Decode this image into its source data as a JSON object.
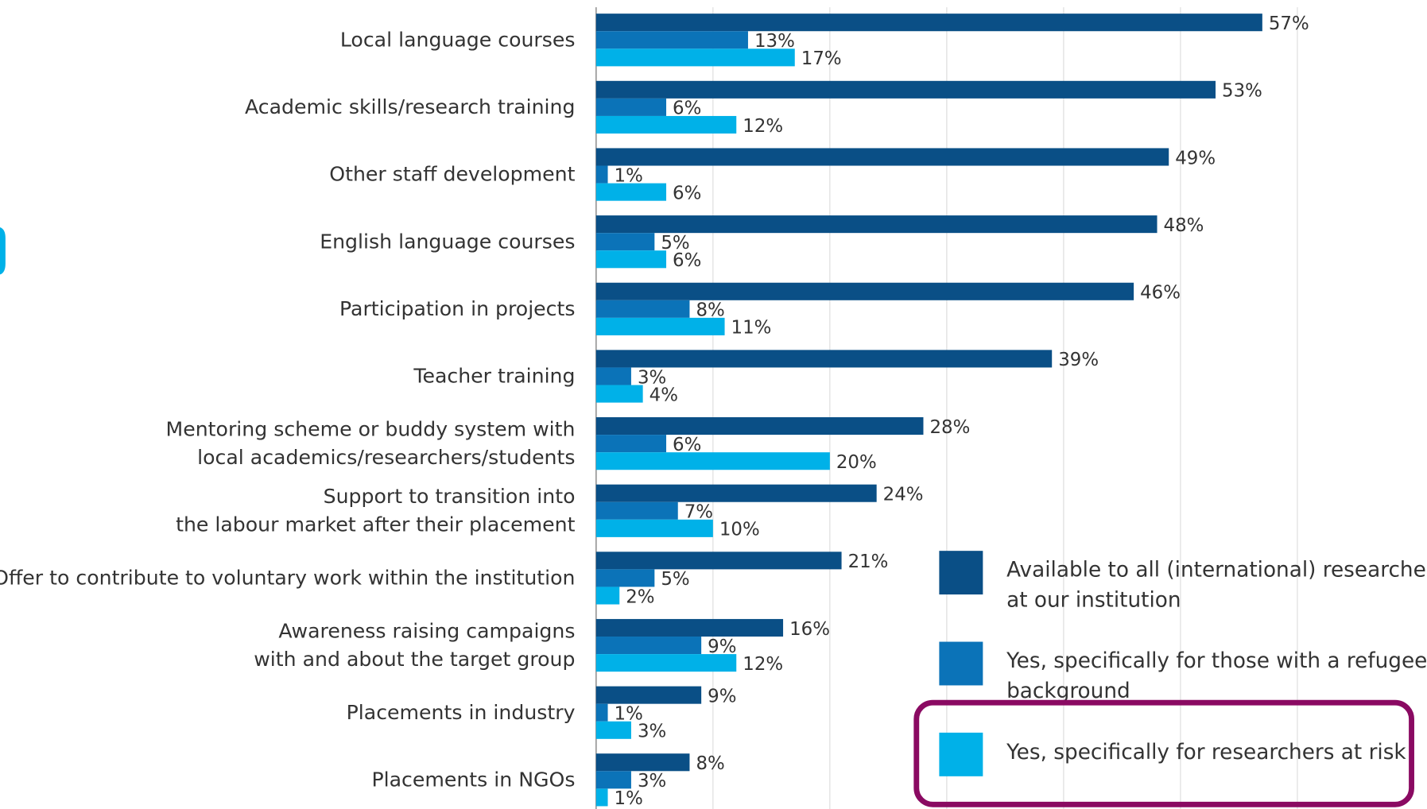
{
  "chart_data": {
    "type": "hbar",
    "categories": [
      "Local language courses",
      "Academic skills/research training",
      "Other staff development",
      "English language courses",
      "Participation in projects",
      "Teacher training",
      "Mentoring scheme or buddy system with\nlocal academics/researchers/students",
      "Support to transition into\nthe labour market after their placement",
      "Offer to contribute to voluntary work within the institution",
      "Awareness raising campaigns\nwith and about the target group",
      "Placements in industry",
      "Placements in NGOs"
    ],
    "series": [
      {
        "name": "Available to all (international) researchers at our institution",
        "color": "#0a4f86",
        "values": [
          57,
          53,
          49,
          48,
          46,
          39,
          28,
          24,
          21,
          16,
          9,
          8
        ],
        "value_labels": [
          "57%",
          "53%",
          "49%",
          "48%",
          "46%",
          "39%",
          "28%",
          "24%",
          "21%",
          "16%",
          "9%",
          "8%"
        ]
      },
      {
        "name": "Yes, specifically for those with a refugee background",
        "color": "#0b73b8",
        "values": [
          13,
          6,
          1,
          5,
          8,
          3,
          6,
          7,
          5,
          9,
          1,
          3
        ],
        "value_labels": [
          "13%",
          "6%",
          "1%",
          "5%",
          "8%",
          "3%",
          "6%",
          "7%",
          "5%",
          "9%",
          "1%",
          "3%"
        ]
      },
      {
        "name": "Yes, specifically for researchers at risk",
        "color": "#00b1e8",
        "values": [
          17,
          12,
          6,
          6,
          11,
          4,
          20,
          10,
          2,
          12,
          3,
          1
        ],
        "value_labels": [
          "17%",
          "12%",
          "6%",
          "6%",
          "11%",
          "4%",
          "20%",
          "10%",
          "2%",
          "12%",
          "3%",
          "1%"
        ]
      }
    ],
    "xlim": [
      0,
      70
    ],
    "xticks": [
      10,
      20,
      30,
      40,
      50,
      60
    ],
    "grid": true
  }
}
